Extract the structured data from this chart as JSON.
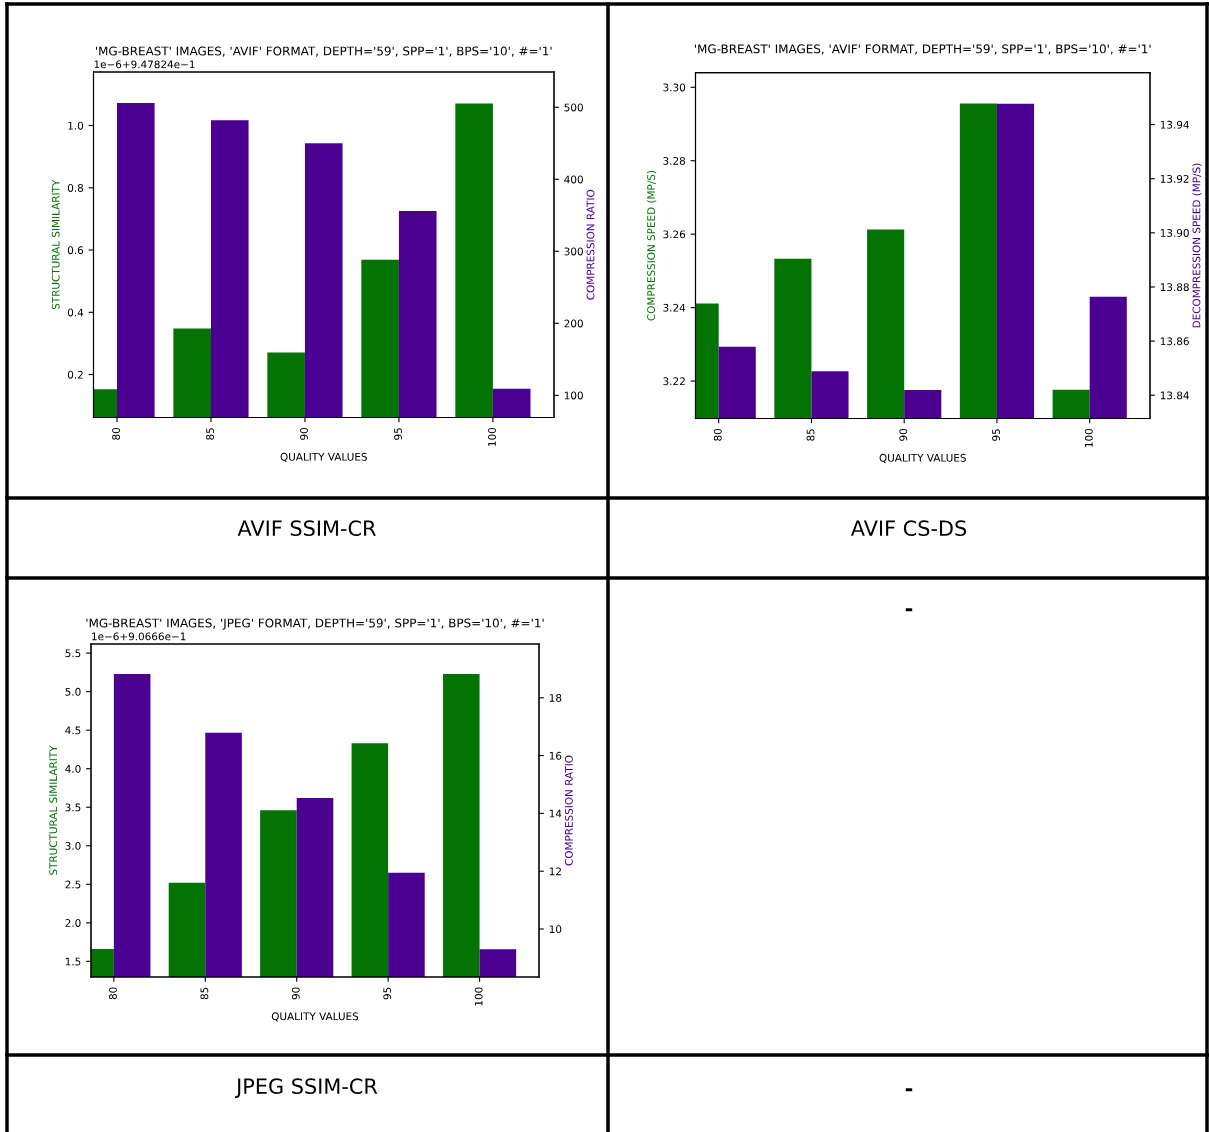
{
  "chart_data": [
    {
      "type": "bar",
      "title": "'MG-BREAST' IMAGES, 'AVIF' FORMAT, DEPTH='59', SPP='1', BPS='10', #='1'",
      "xlabel": "QUALITY VALUES",
      "ylabel": "STRUCTURAL SIMILARITY",
      "y2label": "COMPRESSION RATIO",
      "categories": [
        "80",
        "85",
        "90",
        "95",
        "100"
      ],
      "series": [
        {
          "color": "#037303",
          "values": [
            0.153,
            0.348,
            0.271,
            0.569,
            1.071
          ]
        },
        {
          "color": "#4b0092",
          "axis": "y2",
          "values": [
            506,
            482,
            450,
            356,
            109
          ]
        }
      ],
      "ylim": [
        0.062,
        1.172
      ],
      "yticks": [
        0.2,
        0.4,
        0.6,
        0.8,
        {
          "value": 1,
          "label": "1.0"
        }
      ],
      "y2lim": [
        69.2,
        549
      ],
      "y2ticks": [
        100,
        200,
        300,
        400,
        500
      ],
      "annotations": [
        "1e−6+9.47824e−1",
        "AVIF SSIM-CR"
      ]
    },
    {
      "type": "bar",
      "title": "'MG-BREAST' IMAGES, 'AVIF' FORMAT, DEPTH='59', SPP='1', BPS='10', #='1'",
      "xlabel": "QUALITY VALUES",
      "ylabel": "COMPRESSION SPEED (MP/S)",
      "y2label": "DECOMPRESSION SPEED (MP/S)",
      "categories": [
        "80",
        "85",
        "90",
        "95",
        "100"
      ],
      "series": [
        {
          "color": "#037303",
          "values": [
            3.2411,
            3.2533,
            3.2613,
            3.2956,
            3.2176
          ]
        },
        {
          "color": "#4b0092",
          "axis": "y2",
          "values": [
            13.8579,
            13.8489,
            13.8419,
            13.9477,
            13.8764
          ]
        }
      ],
      "ylim": [
        3.2098,
        3.304
      ],
      "yticks": [
        3.22,
        3.24,
        3.26,
        3.28,
        {
          "value": 3.3,
          "label": "3.30"
        }
      ],
      "y2lim": [
        13.8314,
        13.9592
      ],
      "y2ticks": [
        13.84,
        13.86,
        13.88,
        {
          "value": 13.9,
          "label": "13.90"
        },
        13.92,
        13.94
      ],
      "annotations": [
        "AVIF CS-DS"
      ]
    },
    {
      "type": "bar",
      "title": "'MG-BREAST' IMAGES, 'JPEG' FORMAT, DEPTH='59', SPP='1', BPS='10', #='1'",
      "xlabel": "QUALITY VALUES",
      "ylabel": "STRUCTURAL SIMILARITY",
      "y2label": "COMPRESSION RATIO",
      "categories": [
        "80",
        "85",
        "90",
        "95",
        "100"
      ],
      "series": [
        {
          "color": "#037303",
          "values": [
            1.66,
            2.52,
            3.46,
            4.33,
            5.23
          ]
        },
        {
          "color": "#4b0092",
          "axis": "y2",
          "values": [
            18.82,
            16.79,
            14.53,
            11.95,
            9.3
          ]
        }
      ],
      "ylim": [
        1.297,
        5.618
      ],
      "yticks": [
        1.5,
        {
          "value": 2,
          "label": "2.0"
        },
        2.5,
        {
          "value": 3,
          "label": "3.0"
        },
        3.5,
        {
          "value": 4,
          "label": "4.0"
        },
        4.5,
        {
          "value": 5,
          "label": "5.0"
        },
        5.5
      ],
      "y2lim": [
        8.34,
        19.86
      ],
      "y2ticks": [
        10,
        12,
        14,
        16,
        18
      ],
      "annotations": [
        "1e−6+9.0666e−1",
        "JPEG SSIM-CR"
      ]
    },
    {
      "type": "other",
      "annotations": [
        "-",
        "-"
      ]
    }
  ]
}
